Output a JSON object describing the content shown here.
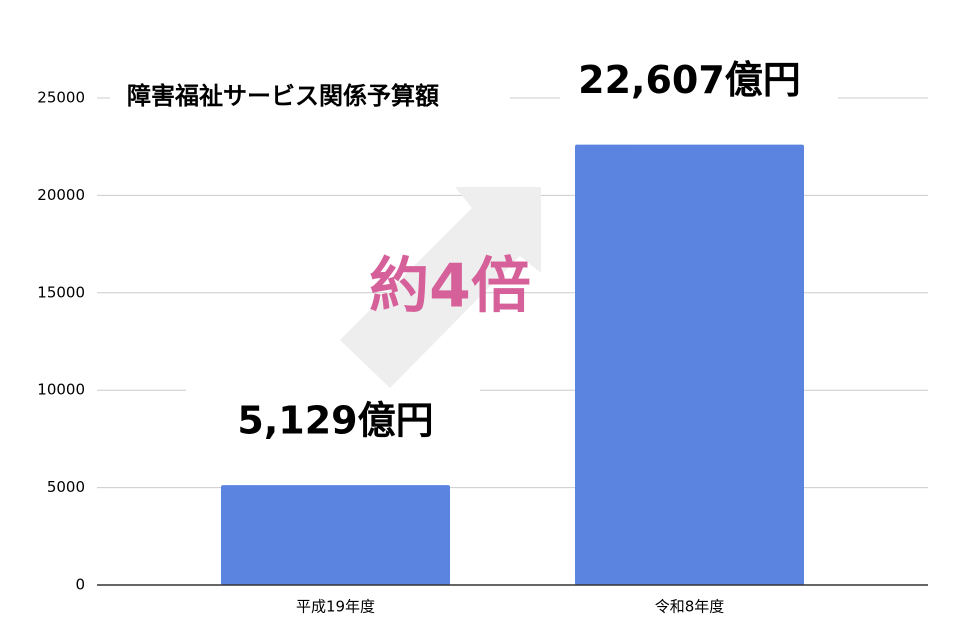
{
  "chart_data": {
    "type": "bar",
    "title": "障害福祉サービス関係予算額",
    "categories": [
      "平成19年度",
      "令和8年度"
    ],
    "values": [
      5129,
      22607
    ],
    "value_labels": [
      "5,129億円",
      "22,607億円"
    ],
    "annotation": "約4倍",
    "color": "#5b84e0",
    "ylim": [
      0,
      25000
    ],
    "yticks": [
      0,
      5000,
      10000,
      15000,
      20000,
      25000
    ],
    "grid": true
  }
}
